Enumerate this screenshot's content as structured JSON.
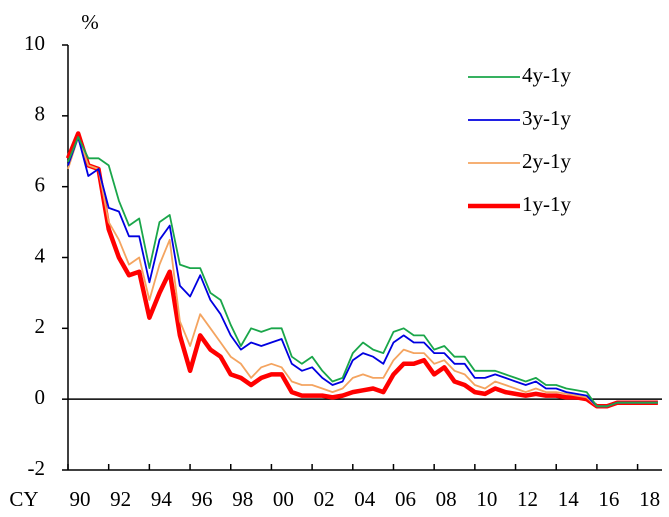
{
  "chart_data": {
    "type": "line",
    "y_label": "%",
    "x_label": "CY",
    "x": [
      1990,
      1990.5,
      1991,
      1991.5,
      1992,
      1992.5,
      1993,
      1993.5,
      1994,
      1994.5,
      1995,
      1995.5,
      1996,
      1996.5,
      1997,
      1997.5,
      1998,
      1998.5,
      1999,
      1999.5,
      2000,
      2000.5,
      2001,
      2001.5,
      2002,
      2002.5,
      2003,
      2003.5,
      2004,
      2004.5,
      2005,
      2005.5,
      2006,
      2006.5,
      2007,
      2007.5,
      2008,
      2008.5,
      2009,
      2009.5,
      2010,
      2010.5,
      2011,
      2011.5,
      2012,
      2012.5,
      2013,
      2013.5,
      2014,
      2014.5,
      2015,
      2015.5,
      2016,
      2016.5,
      2017,
      2017.5,
      2018,
      2018.5,
      2019
    ],
    "series": [
      {
        "name": "4y-1y",
        "color": "#1aa64a",
        "width": 1.8,
        "values": [
          6.7,
          7.4,
          6.8,
          6.8,
          6.6,
          5.6,
          4.9,
          5.1,
          3.7,
          5.0,
          5.2,
          3.8,
          3.7,
          3.7,
          3.0,
          2.8,
          2.1,
          1.5,
          2.0,
          1.9,
          2.0,
          2.0,
          1.2,
          1.0,
          1.2,
          0.8,
          0.5,
          0.6,
          1.3,
          1.6,
          1.4,
          1.3,
          1.9,
          2.0,
          1.8,
          1.8,
          1.4,
          1.5,
          1.2,
          1.2,
          0.8,
          0.8,
          0.8,
          0.7,
          0.6,
          0.5,
          0.6,
          0.4,
          0.4,
          0.3,
          0.25,
          0.2,
          -0.2,
          -0.2,
          -0.1,
          -0.1,
          -0.1,
          -0.1,
          -0.1
        ]
      },
      {
        "name": "3y-1y",
        "color": "#0000e0",
        "width": 1.8,
        "values": [
          6.6,
          7.4,
          6.3,
          6.5,
          5.4,
          5.3,
          4.6,
          4.6,
          3.3,
          4.5,
          4.9,
          3.2,
          2.9,
          3.5,
          2.8,
          2.4,
          1.8,
          1.4,
          1.6,
          1.5,
          1.6,
          1.7,
          1.0,
          0.8,
          0.9,
          0.6,
          0.4,
          0.5,
          1.1,
          1.3,
          1.2,
          1.0,
          1.6,
          1.8,
          1.6,
          1.6,
          1.3,
          1.3,
          1.0,
          1.0,
          0.6,
          0.6,
          0.7,
          0.6,
          0.5,
          0.4,
          0.5,
          0.3,
          0.3,
          0.2,
          0.15,
          0.1,
          -0.2,
          -0.2,
          -0.1,
          -0.1,
          -0.1,
          -0.1,
          -0.1
        ]
      },
      {
        "name": "2y-1y",
        "color": "#f4a460",
        "width": 1.8,
        "values": [
          6.5,
          7.4,
          6.6,
          6.5,
          5.0,
          4.5,
          3.8,
          4.0,
          2.8,
          3.8,
          4.5,
          2.2,
          1.5,
          2.4,
          2.0,
          1.6,
          1.2,
          1.0,
          0.6,
          0.9,
          1.0,
          0.9,
          0.5,
          0.4,
          0.4,
          0.3,
          0.2,
          0.3,
          0.6,
          0.7,
          0.6,
          0.6,
          1.1,
          1.4,
          1.3,
          1.3,
          1.0,
          1.1,
          0.8,
          0.7,
          0.4,
          0.3,
          0.5,
          0.4,
          0.3,
          0.2,
          0.3,
          0.2,
          0.2,
          0.15,
          0.1,
          0.05,
          -0.2,
          -0.2,
          -0.1,
          -0.1,
          -0.1,
          -0.1,
          -0.1
        ]
      },
      {
        "name": "1y-1y",
        "color": "#ff0000",
        "width": 4.5,
        "values": [
          6.8,
          7.5,
          6.6,
          6.5,
          4.8,
          4.0,
          3.5,
          3.6,
          2.3,
          3.0,
          3.6,
          1.8,
          0.8,
          1.8,
          1.4,
          1.2,
          0.7,
          0.6,
          0.4,
          0.6,
          0.7,
          0.7,
          0.2,
          0.1,
          0.1,
          0.1,
          0.05,
          0.1,
          0.2,
          0.25,
          0.3,
          0.2,
          0.7,
          1.0,
          1.0,
          1.1,
          0.7,
          0.9,
          0.5,
          0.4,
          0.2,
          0.15,
          0.3,
          0.2,
          0.15,
          0.1,
          0.15,
          0.1,
          0.1,
          0.05,
          0.05,
          0.0,
          -0.2,
          -0.2,
          -0.1,
          -0.1,
          -0.1,
          -0.1,
          -0.1
        ]
      }
    ],
    "xlim": [
      1990,
      2019.2
    ],
    "xticks": [
      {
        "value": 1990,
        "label": "90"
      },
      {
        "value": 1992,
        "label": "92"
      },
      {
        "value": 1994,
        "label": "94"
      },
      {
        "value": 1996,
        "label": "96"
      },
      {
        "value": 1998,
        "label": "98"
      },
      {
        "value": 2000,
        "label": "00"
      },
      {
        "value": 2002,
        "label": "02"
      },
      {
        "value": 2004,
        "label": "04"
      },
      {
        "value": 2006,
        "label": "06"
      },
      {
        "value": 2008,
        "label": "08"
      },
      {
        "value": 2010,
        "label": "10"
      },
      {
        "value": 2012,
        "label": "12"
      },
      {
        "value": 2014,
        "label": "14"
      },
      {
        "value": 2016,
        "label": "16"
      },
      {
        "value": 2018,
        "label": "18"
      }
    ],
    "ylim": [
      -2,
      10
    ],
    "yticks": [
      -2,
      0,
      2,
      4,
      6,
      8,
      10
    ],
    "legend": "upper-right"
  }
}
